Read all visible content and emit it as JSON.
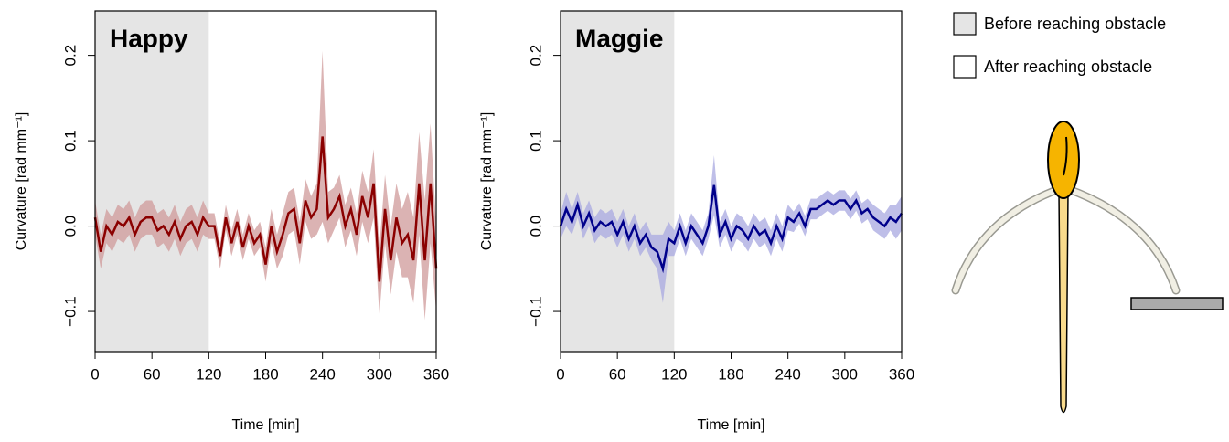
{
  "legend": [
    {
      "label": "Before reaching obstacle",
      "color": "#e5e5e5"
    },
    {
      "label": "After reaching obstacle",
      "color": "#ffffff"
    }
  ],
  "chart_data": [
    {
      "type": "line",
      "title": "Happy",
      "x_label": "Time [min]",
      "y_label": "Curvature [rad mm⁻¹]",
      "xlim": [
        0,
        360
      ],
      "xticks": [
        0,
        60,
        120,
        180,
        240,
        300,
        360
      ],
      "ylim": [
        -0.147,
        0.252
      ],
      "yticks": [
        {
          "value": -0.1,
          "label": "−0.1"
        },
        {
          "value": 0,
          "label": "0.0"
        },
        0.1,
        0.2
      ],
      "shade": [
        0,
        120
      ],
      "color": "#8b0000",
      "band_color": "#cf9a9a",
      "x": [
        0,
        6,
        12,
        18,
        24,
        30,
        36,
        42,
        48,
        54,
        60,
        66,
        72,
        78,
        84,
        90,
        96,
        102,
        108,
        114,
        120,
        126,
        132,
        138,
        144,
        150,
        156,
        162,
        168,
        174,
        180,
        186,
        192,
        198,
        204,
        210,
        216,
        222,
        228,
        234,
        240,
        246,
        252,
        258,
        264,
        270,
        276,
        282,
        288,
        294,
        300,
        306,
        312,
        318,
        324,
        330,
        336,
        342,
        348,
        354,
        360
      ],
      "values": [
        0.01,
        -0.03,
        0.0,
        -0.01,
        0.005,
        0.0,
        0.01,
        -0.01,
        0.005,
        0.01,
        0.01,
        -0.005,
        0.0,
        -0.01,
        0.005,
        -0.015,
        0.0,
        0.005,
        -0.01,
        0.01,
        0.0,
        0.0,
        -0.035,
        0.01,
        -0.02,
        0.005,
        -0.025,
        0.0,
        -0.02,
        -0.01,
        -0.045,
        0.0,
        -0.03,
        -0.01,
        0.015,
        0.02,
        -0.02,
        0.03,
        0.01,
        0.02,
        0.105,
        0.01,
        0.02,
        0.035,
        0.0,
        0.02,
        -0.01,
        0.035,
        0.01,
        0.05,
        -0.065,
        0.02,
        -0.04,
        0.01,
        -0.02,
        -0.01,
        -0.04,
        0.05,
        -0.04,
        0.05,
        -0.05
      ],
      "err": [
        0.02,
        0.02,
        0.02,
        0.02,
        0.02,
        0.02,
        0.02,
        0.02,
        0.02,
        0.02,
        0.02,
        0.02,
        0.02,
        0.02,
        0.02,
        0.02,
        0.02,
        0.02,
        0.02,
        0.02,
        0.015,
        0.015,
        0.015,
        0.015,
        0.015,
        0.015,
        0.015,
        0.015,
        0.015,
        0.015,
        0.02,
        0.02,
        0.02,
        0.025,
        0.025,
        0.025,
        0.025,
        0.025,
        0.025,
        0.03,
        0.1,
        0.03,
        0.025,
        0.025,
        0.025,
        0.025,
        0.025,
        0.03,
        0.03,
        0.04,
        0.04,
        0.04,
        0.04,
        0.04,
        0.04,
        0.05,
        0.05,
        0.06,
        0.07,
        0.07,
        0.05
      ]
    },
    {
      "type": "line",
      "title": "Maggie",
      "x_label": "Time [min]",
      "y_label": "Curvature [rad mm⁻¹]",
      "xlim": [
        0,
        360
      ],
      "xticks": [
        0,
        60,
        120,
        180,
        240,
        300,
        360
      ],
      "ylim": [
        -0.147,
        0.252
      ],
      "yticks": [
        {
          "value": -0.1,
          "label": "−0.1"
        },
        {
          "value": 0,
          "label": "0.0"
        },
        0.1,
        0.2
      ],
      "shade": [
        0,
        120
      ],
      "color": "#00008b",
      "band_color": "#a8a8e0",
      "x": [
        0,
        6,
        12,
        18,
        24,
        30,
        36,
        42,
        48,
        54,
        60,
        66,
        72,
        78,
        84,
        90,
        96,
        102,
        108,
        114,
        120,
        126,
        132,
        138,
        144,
        150,
        156,
        162,
        168,
        174,
        180,
        186,
        192,
        198,
        204,
        210,
        216,
        222,
        228,
        234,
        240,
        246,
        252,
        258,
        264,
        270,
        276,
        282,
        288,
        294,
        300,
        306,
        312,
        318,
        324,
        330,
        336,
        342,
        348,
        354,
        360
      ],
      "values": [
        0.0,
        0.02,
        0.005,
        0.025,
        0.0,
        0.015,
        -0.005,
        0.005,
        0.0,
        0.005,
        -0.01,
        0.005,
        -0.015,
        0.0,
        -0.02,
        -0.01,
        -0.025,
        -0.03,
        -0.05,
        -0.015,
        -0.02,
        0.0,
        -0.02,
        0.0,
        -0.01,
        -0.02,
        0.0,
        0.048,
        -0.01,
        0.005,
        -0.015,
        0.0,
        -0.005,
        -0.015,
        0.0,
        -0.01,
        -0.005,
        -0.02,
        0.0,
        -0.015,
        0.01,
        0.005,
        0.015,
        0.0,
        0.02,
        0.02,
        0.025,
        0.03,
        0.025,
        0.03,
        0.03,
        0.02,
        0.03,
        0.015,
        0.02,
        0.01,
        0.005,
        0.0,
        0.01,
        0.005,
        0.015
      ],
      "err": [
        0.015,
        0.02,
        0.015,
        0.015,
        0.015,
        0.015,
        0.015,
        0.015,
        0.015,
        0.015,
        0.015,
        0.015,
        0.015,
        0.015,
        0.015,
        0.015,
        0.015,
        0.02,
        0.04,
        0.02,
        0.015,
        0.015,
        0.015,
        0.015,
        0.015,
        0.015,
        0.015,
        0.035,
        0.015,
        0.015,
        0.015,
        0.015,
        0.015,
        0.015,
        0.015,
        0.015,
        0.015,
        0.015,
        0.015,
        0.015,
        0.015,
        0.012,
        0.012,
        0.012,
        0.012,
        0.012,
        0.012,
        0.012,
        0.012,
        0.012,
        0.012,
        0.012,
        0.012,
        0.012,
        0.012,
        0.015,
        0.015,
        0.015,
        0.015,
        0.02,
        0.02
      ]
    }
  ]
}
